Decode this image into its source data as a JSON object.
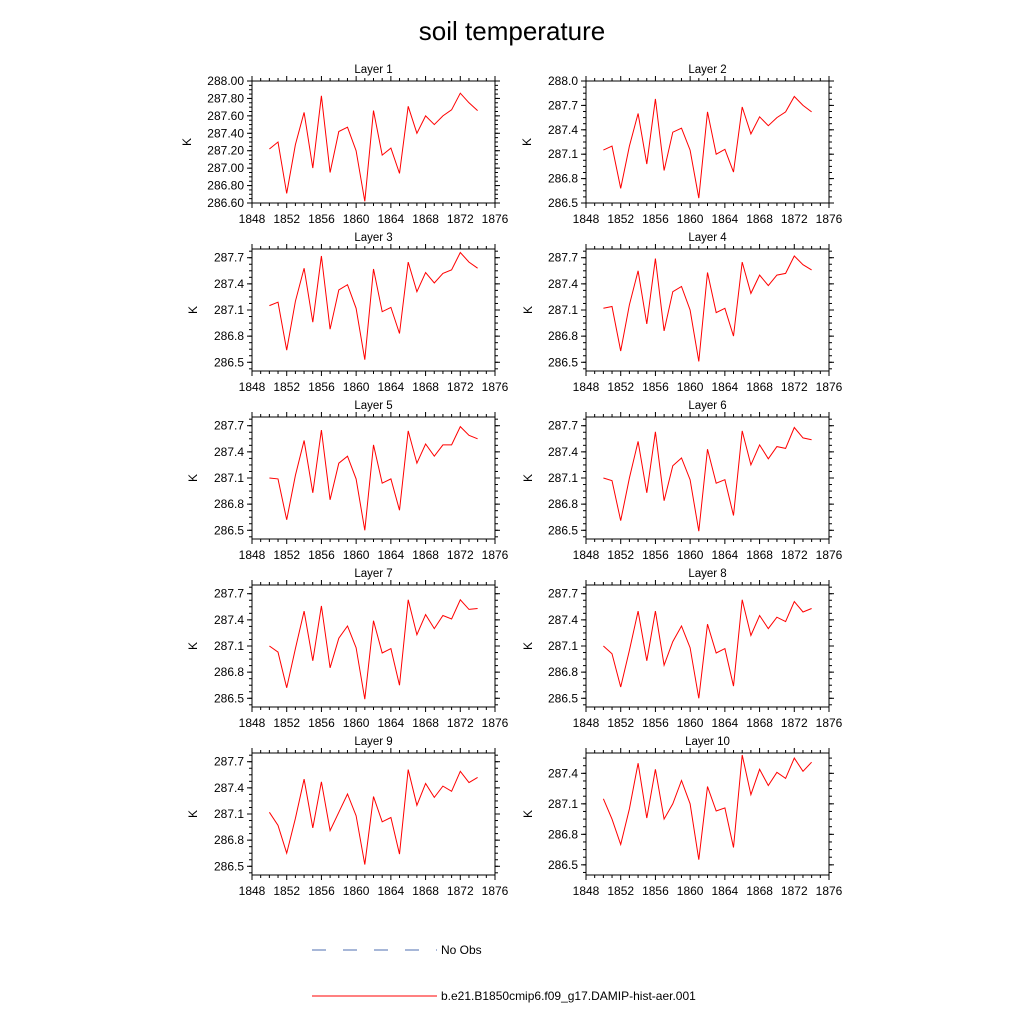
{
  "figure": {
    "title": "soil temperature"
  },
  "legend": {
    "items": [
      {
        "label": "No Obs",
        "color": "#4f6fb0",
        "style": "dashed"
      },
      {
        "label": "b.e21.B1850cmip6.f09_g17.DAMIP-hist-aer.001",
        "color": "#ff0000",
        "style": "solid"
      }
    ]
  },
  "chart_data": [
    {
      "type": "line",
      "title": "Layer 1",
      "ylabel": "K",
      "xlim": [
        1848,
        1876
      ],
      "ylim": [
        286.6,
        288.0
      ],
      "xticks": [
        1848,
        1852,
        1856,
        1860,
        1864,
        1868,
        1872,
        1876
      ],
      "yticks": [
        "286.60",
        "286.80",
        "287.00",
        "287.20",
        "287.40",
        "287.60",
        "287.80",
        "288.00"
      ],
      "series": [
        {
          "color": "#ff0000",
          "x": [
            1850,
            1851,
            1852,
            1853,
            1854,
            1855,
            1856,
            1857,
            1858,
            1859,
            1860,
            1861,
            1862,
            1863,
            1864,
            1865,
            1866,
            1867,
            1868,
            1869,
            1870,
            1871,
            1872,
            1873,
            1874
          ],
          "y": [
            287.22,
            287.3,
            286.71,
            287.27,
            287.64,
            287.0,
            287.83,
            286.95,
            287.42,
            287.47,
            287.2,
            286.62,
            287.66,
            287.15,
            287.23,
            286.94,
            287.71,
            287.4,
            287.6,
            287.5,
            287.6,
            287.67,
            287.86,
            287.75,
            287.66
          ]
        }
      ]
    },
    {
      "type": "line",
      "title": "Layer 2",
      "ylabel": "K",
      "xlim": [
        1848,
        1876
      ],
      "ylim": [
        286.5,
        288.0
      ],
      "xticks": [
        1848,
        1852,
        1856,
        1860,
        1864,
        1868,
        1872,
        1876
      ],
      "yticks": [
        "286.5",
        "286.8",
        "287.1",
        "287.4",
        "287.7",
        "288.0"
      ],
      "series": [
        {
          "color": "#ff0000",
          "x": [
            1850,
            1851,
            1852,
            1853,
            1854,
            1855,
            1856,
            1857,
            1858,
            1859,
            1860,
            1861,
            1862,
            1863,
            1864,
            1865,
            1866,
            1867,
            1868,
            1869,
            1870,
            1871,
            1872,
            1873,
            1874
          ],
          "y": [
            287.15,
            287.2,
            286.68,
            287.2,
            287.6,
            286.98,
            287.78,
            286.9,
            287.37,
            287.42,
            287.15,
            286.56,
            287.62,
            287.1,
            287.16,
            286.88,
            287.68,
            287.35,
            287.56,
            287.45,
            287.55,
            287.62,
            287.81,
            287.7,
            287.62
          ]
        }
      ]
    },
    {
      "type": "line",
      "title": "Layer 3",
      "ylabel": "K",
      "xlim": [
        1848,
        1876
      ],
      "ylim": [
        286.4,
        287.8
      ],
      "xticks": [
        1848,
        1852,
        1856,
        1860,
        1864,
        1868,
        1872,
        1876
      ],
      "yticks": [
        "286.5",
        "286.8",
        "287.1",
        "287.4",
        "287.7"
      ],
      "series": [
        {
          "color": "#ff0000",
          "x": [
            1850,
            1851,
            1852,
            1853,
            1854,
            1855,
            1856,
            1857,
            1858,
            1859,
            1860,
            1861,
            1862,
            1863,
            1864,
            1865,
            1866,
            1867,
            1868,
            1869,
            1870,
            1871,
            1872,
            1873,
            1874
          ],
          "y": [
            287.15,
            287.19,
            286.64,
            287.2,
            287.58,
            286.96,
            287.72,
            286.88,
            287.33,
            287.39,
            287.12,
            286.53,
            287.57,
            287.08,
            287.13,
            286.83,
            287.65,
            287.31,
            287.53,
            287.41,
            287.52,
            287.56,
            287.76,
            287.65,
            287.58
          ]
        }
      ]
    },
    {
      "type": "line",
      "title": "Layer 4",
      "ylabel": "K",
      "xlim": [
        1848,
        1876
      ],
      "ylim": [
        286.4,
        287.8
      ],
      "xticks": [
        1848,
        1852,
        1856,
        1860,
        1864,
        1868,
        1872,
        1876
      ],
      "yticks": [
        "286.5",
        "286.8",
        "287.1",
        "287.4",
        "287.7"
      ],
      "series": [
        {
          "color": "#ff0000",
          "x": [
            1850,
            1851,
            1852,
            1853,
            1854,
            1855,
            1856,
            1857,
            1858,
            1859,
            1860,
            1861,
            1862,
            1863,
            1864,
            1865,
            1866,
            1867,
            1868,
            1869,
            1870,
            1871,
            1872,
            1873,
            1874
          ],
          "y": [
            287.12,
            287.14,
            286.63,
            287.16,
            287.55,
            286.94,
            287.69,
            286.86,
            287.31,
            287.37,
            287.1,
            286.51,
            287.53,
            287.07,
            287.12,
            286.8,
            287.65,
            287.29,
            287.5,
            287.38,
            287.5,
            287.52,
            287.72,
            287.62,
            287.56
          ]
        }
      ]
    },
    {
      "type": "line",
      "title": "Layer 5",
      "ylabel": "K",
      "xlim": [
        1848,
        1876
      ],
      "ylim": [
        286.4,
        287.8
      ],
      "xticks": [
        1848,
        1852,
        1856,
        1860,
        1864,
        1868,
        1872,
        1876
      ],
      "yticks": [
        "286.5",
        "286.8",
        "287.1",
        "287.4",
        "287.7"
      ],
      "series": [
        {
          "color": "#ff0000",
          "x": [
            1850,
            1851,
            1852,
            1853,
            1854,
            1855,
            1856,
            1857,
            1858,
            1859,
            1860,
            1861,
            1862,
            1863,
            1864,
            1865,
            1866,
            1867,
            1868,
            1869,
            1870,
            1871,
            1872,
            1873,
            1874
          ],
          "y": [
            287.1,
            287.09,
            286.62,
            287.13,
            287.53,
            286.93,
            287.65,
            286.85,
            287.27,
            287.35,
            287.09,
            286.5,
            287.48,
            287.04,
            287.09,
            286.73,
            287.64,
            287.27,
            287.49,
            287.35,
            287.48,
            287.48,
            287.69,
            287.59,
            287.55
          ]
        }
      ]
    },
    {
      "type": "line",
      "title": "Layer 6",
      "ylabel": "K",
      "xlim": [
        1848,
        1876
      ],
      "ylim": [
        286.4,
        287.8
      ],
      "xticks": [
        1848,
        1852,
        1856,
        1860,
        1864,
        1868,
        1872,
        1876
      ],
      "yticks": [
        "286.5",
        "286.8",
        "287.1",
        "287.4",
        "287.7"
      ],
      "series": [
        {
          "color": "#ff0000",
          "x": [
            1850,
            1851,
            1852,
            1853,
            1854,
            1855,
            1856,
            1857,
            1858,
            1859,
            1860,
            1861,
            1862,
            1863,
            1864,
            1865,
            1866,
            1867,
            1868,
            1869,
            1870,
            1871,
            1872,
            1873,
            1874
          ],
          "y": [
            287.1,
            287.07,
            286.61,
            287.1,
            287.52,
            286.93,
            287.63,
            286.84,
            287.24,
            287.33,
            287.08,
            286.49,
            287.43,
            287.04,
            287.08,
            286.67,
            287.64,
            287.25,
            287.48,
            287.32,
            287.46,
            287.44,
            287.68,
            287.56,
            287.54
          ]
        }
      ]
    },
    {
      "type": "line",
      "title": "Layer 7",
      "ylabel": "K",
      "xlim": [
        1848,
        1876
      ],
      "ylim": [
        286.4,
        287.8
      ],
      "xticks": [
        1848,
        1852,
        1856,
        1860,
        1864,
        1868,
        1872,
        1876
      ],
      "yticks": [
        "286.5",
        "286.8",
        "287.1",
        "287.4",
        "287.7"
      ],
      "series": [
        {
          "color": "#ff0000",
          "x": [
            1850,
            1851,
            1852,
            1853,
            1854,
            1855,
            1856,
            1857,
            1858,
            1859,
            1860,
            1861,
            1862,
            1863,
            1864,
            1865,
            1866,
            1867,
            1868,
            1869,
            1870,
            1871,
            1872,
            1873,
            1874
          ],
          "y": [
            287.1,
            287.03,
            286.62,
            287.07,
            287.5,
            286.93,
            287.56,
            286.85,
            287.19,
            287.33,
            287.08,
            286.49,
            287.39,
            287.02,
            287.07,
            286.65,
            287.63,
            287.23,
            287.46,
            287.3,
            287.45,
            287.41,
            287.63,
            287.52,
            287.53
          ]
        }
      ]
    },
    {
      "type": "line",
      "title": "Layer 8",
      "ylabel": "K",
      "xlim": [
        1848,
        1876
      ],
      "ylim": [
        286.4,
        287.8
      ],
      "xticks": [
        1848,
        1852,
        1856,
        1860,
        1864,
        1868,
        1872,
        1876
      ],
      "yticks": [
        "286.5",
        "286.8",
        "287.1",
        "287.4",
        "287.7"
      ],
      "series": [
        {
          "color": "#ff0000",
          "x": [
            1850,
            1851,
            1852,
            1853,
            1854,
            1855,
            1856,
            1857,
            1858,
            1859,
            1860,
            1861,
            1862,
            1863,
            1864,
            1865,
            1866,
            1867,
            1868,
            1869,
            1870,
            1871,
            1872,
            1873,
            1874
          ],
          "y": [
            287.1,
            287.01,
            286.63,
            287.05,
            287.5,
            286.93,
            287.5,
            286.88,
            287.15,
            287.33,
            287.08,
            286.5,
            287.35,
            287.02,
            287.07,
            286.64,
            287.63,
            287.22,
            287.45,
            287.3,
            287.43,
            287.38,
            287.61,
            287.49,
            287.53
          ]
        }
      ]
    },
    {
      "type": "line",
      "title": "Layer 9",
      "ylabel": "K",
      "xlim": [
        1848,
        1876
      ],
      "ylim": [
        286.4,
        287.8
      ],
      "xticks": [
        1848,
        1852,
        1856,
        1860,
        1864,
        1868,
        1872,
        1876
      ],
      "yticks": [
        "286.5",
        "286.8",
        "287.1",
        "287.4",
        "287.7"
      ],
      "series": [
        {
          "color": "#ff0000",
          "x": [
            1850,
            1851,
            1852,
            1853,
            1854,
            1855,
            1856,
            1857,
            1858,
            1859,
            1860,
            1861,
            1862,
            1863,
            1864,
            1865,
            1866,
            1867,
            1868,
            1869,
            1870,
            1871,
            1872,
            1873,
            1874
          ],
          "y": [
            287.12,
            286.97,
            286.65,
            287.05,
            287.5,
            286.94,
            287.47,
            286.91,
            287.12,
            287.33,
            287.08,
            286.52,
            287.3,
            287.01,
            287.06,
            286.64,
            287.61,
            287.2,
            287.45,
            287.29,
            287.42,
            287.36,
            287.59,
            287.46,
            287.52
          ]
        }
      ]
    },
    {
      "type": "line",
      "title": "Layer 10",
      "ylabel": "K",
      "xlim": [
        1848,
        1876
      ],
      "ylim": [
        286.4,
        287.6
      ],
      "xticks": [
        1848,
        1852,
        1856,
        1860,
        1864,
        1868,
        1872,
        1876
      ],
      "yticks": [
        "286.5",
        "286.8",
        "287.1",
        "287.4"
      ],
      "series": [
        {
          "color": "#ff0000",
          "x": [
            1850,
            1851,
            1852,
            1853,
            1854,
            1855,
            1856,
            1857,
            1858,
            1859,
            1860,
            1861,
            1862,
            1863,
            1864,
            1865,
            1866,
            1867,
            1868,
            1869,
            1870,
            1871,
            1872,
            1873,
            1874
          ],
          "y": [
            287.15,
            286.95,
            286.7,
            287.05,
            287.5,
            286.96,
            287.44,
            286.95,
            287.1,
            287.33,
            287.1,
            286.55,
            287.27,
            287.03,
            287.06,
            286.67,
            287.58,
            287.19,
            287.44,
            287.28,
            287.41,
            287.35,
            287.55,
            287.42,
            287.51
          ]
        }
      ]
    }
  ]
}
